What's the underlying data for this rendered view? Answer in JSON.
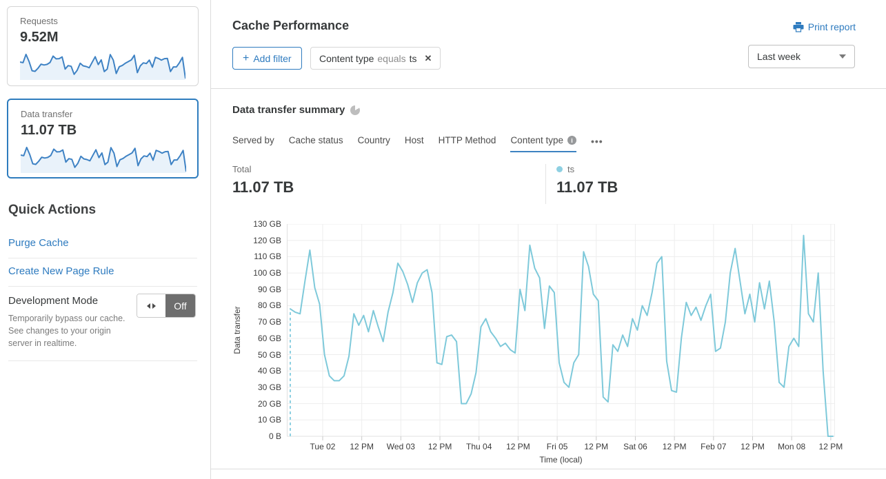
{
  "sidebar": {
    "cards": [
      {
        "label": "Requests",
        "value": "9.52M",
        "selected": false
      },
      {
        "label": "Data transfer",
        "value": "11.07 TB",
        "selected": true
      }
    ],
    "sparkline_gb": [
      78,
      75,
      114,
      81,
      37,
      34,
      49,
      68,
      64,
      67,
      76,
      106,
      93,
      94,
      102,
      45,
      61,
      58,
      20,
      39,
      72,
      60,
      57,
      51,
      77,
      103,
      66,
      88,
      33,
      45,
      113,
      87,
      24,
      56,
      62,
      72,
      80,
      88,
      110,
      28,
      60,
      74,
      71,
      87,
      54,
      100,
      95,
      87,
      94,
      95,
      33,
      55,
      55,
      75,
      100,
      0
    ],
    "quick_actions": {
      "title": "Quick Actions",
      "links": [
        "Purge Cache",
        "Create New Page Rule"
      ],
      "dev_mode": {
        "title": "Development Mode",
        "description": "Temporarily bypass our cache. See changes to your origin server in realtime.",
        "toggle_state": "Off"
      }
    }
  },
  "header": {
    "title": "Cache Performance",
    "print_label": "Print report",
    "add_filter_label": "Add filter",
    "plus_glyph": "+",
    "filter_chip": {
      "field": "Content type",
      "operator": "equals",
      "value": "ts",
      "close_glyph": "✕"
    },
    "range_value": "Last week"
  },
  "summary": {
    "title": "Data transfer summary",
    "tabs": [
      {
        "label": "Served by",
        "active": false,
        "has_info": false
      },
      {
        "label": "Cache status",
        "active": false,
        "has_info": false
      },
      {
        "label": "Country",
        "active": false,
        "has_info": false
      },
      {
        "label": "Host",
        "active": false,
        "has_info": false
      },
      {
        "label": "HTTP Method",
        "active": false,
        "has_info": false
      },
      {
        "label": "Content type",
        "active": true,
        "has_info": true
      }
    ],
    "info_glyph": "i",
    "more_label": "•••",
    "total_label": "Total",
    "total_value": "11.07 TB",
    "legend": {
      "name": "ts",
      "value": "11.07 TB"
    }
  },
  "chart_data": {
    "type": "line",
    "title": "Data transfer summary",
    "xlabel": "Time (local)",
    "ylabel": "Data transfer",
    "ylim_gb": [
      0,
      130
    ],
    "y_ticks": [
      "0 B",
      "10 GB",
      "20 GB",
      "30 GB",
      "40 GB",
      "50 GB",
      "60 GB",
      "70 GB",
      "80 GB",
      "90 GB",
      "100 GB",
      "110 GB",
      "120 GB",
      "130 GB"
    ],
    "x_ticks": [
      "Tue 02",
      "12 PM",
      "Wed 03",
      "12 PM",
      "Thu 04",
      "12 PM",
      "Fri 05",
      "12 PM",
      "Sat 06",
      "12 PM",
      "Feb 07",
      "12 PM",
      "Mon 08",
      "12 PM"
    ],
    "x_tick_interval_hours": 12,
    "grid": true,
    "legend_position": "above-right",
    "start_marker": "dashed-vertical-line",
    "series": [
      {
        "name": "ts",
        "unit": "GB",
        "color": "#7ec9da",
        "total": "11.07 TB",
        "values_gb": [
          78,
          76,
          75,
          95,
          114,
          91,
          81,
          50,
          37,
          34,
          34,
          37,
          49,
          75,
          68,
          74,
          64,
          77,
          67,
          58,
          76,
          88,
          106,
          101,
          93,
          82,
          94,
          100,
          102,
          88,
          45,
          44,
          61,
          62,
          58,
          20,
          20,
          26,
          39,
          67,
          72,
          64,
          60,
          55,
          57,
          53,
          51,
          90,
          77,
          117,
          103,
          97,
          66,
          92,
          88,
          45,
          33,
          30,
          45,
          50,
          113,
          104,
          87,
          83,
          24,
          21,
          56,
          52,
          62,
          55,
          72,
          65,
          80,
          74,
          88,
          106,
          110,
          46,
          28,
          27,
          60,
          82,
          74,
          79,
          71,
          80,
          87,
          52,
          54,
          70,
          100,
          115,
          95,
          75,
          87,
          70,
          94,
          78,
          95,
          70,
          33,
          30,
          55,
          60,
          55,
          123,
          75,
          70,
          100,
          40,
          0,
          0
        ]
      }
    ]
  },
  "colors": {
    "accent_blue": "#2e7bbf",
    "selected_card_border": "#2e7cbe",
    "chart_line": "#7ec9da",
    "legend_dot": "#8ed0e2",
    "spark_stroke": "#3e82c4",
    "spark_fill": "#e9f2fa",
    "grid_line": "#ededed",
    "toggle_off_bg": "#6e6e6e"
  }
}
